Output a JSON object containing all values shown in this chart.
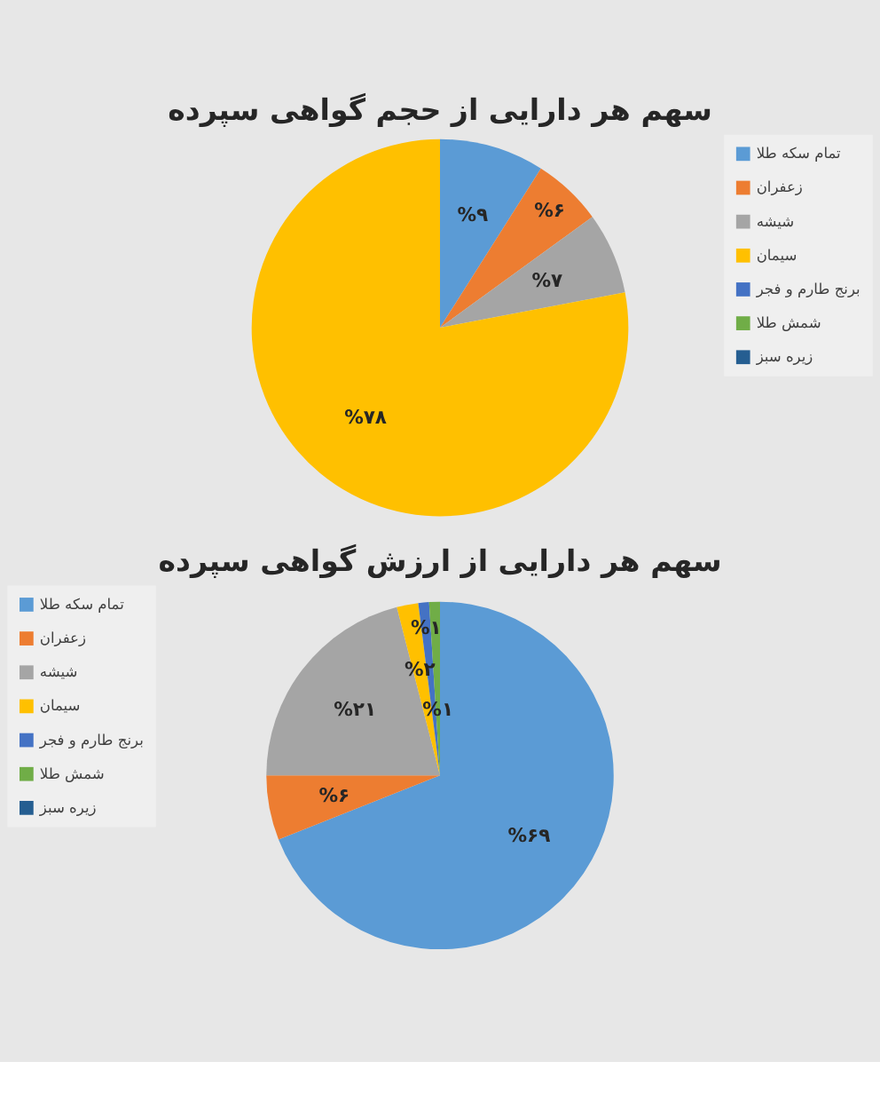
{
  "chart_data": [
    {
      "type": "pie",
      "title": "سهم هر دارایی از حجم گواهی سپرده",
      "categories": [
        "تمام سکه طلا",
        "زعفران",
        "شیشه",
        "سیمان",
        "برنج طارم و فجر",
        "شمش طلا",
        "زیره سبز"
      ],
      "values": [
        9,
        6,
        7,
        78,
        0,
        0,
        0
      ],
      "colors": [
        "#5b9bd5",
        "#ed7d31",
        "#a5a5a5",
        "#ffc000",
        "#4472c4",
        "#70ad47",
        "#255e91"
      ],
      "value_labels": [
        "%۹",
        "%۶",
        "%۷",
        "%۷۸",
        null,
        null,
        null
      ],
      "legend": "right"
    },
    {
      "type": "pie",
      "title": "سهم هر دارایی از ارزش گواهی سپرده",
      "categories": [
        "تمام سکه طلا",
        "زعفران",
        "شیشه",
        "سیمان",
        "برنج طارم و فجر",
        "شمش طلا",
        "زیره سبز"
      ],
      "values": [
        69,
        6,
        21,
        2,
        1,
        1,
        0
      ],
      "colors": [
        "#5b9bd5",
        "#ed7d31",
        "#a5a5a5",
        "#ffc000",
        "#4472c4",
        "#70ad47",
        "#255e91"
      ],
      "value_labels": [
        "%۶۹",
        "%۶",
        "%۲۱",
        "%۲",
        "%۱",
        "%۱",
        null
      ],
      "legend": "left"
    }
  ]
}
